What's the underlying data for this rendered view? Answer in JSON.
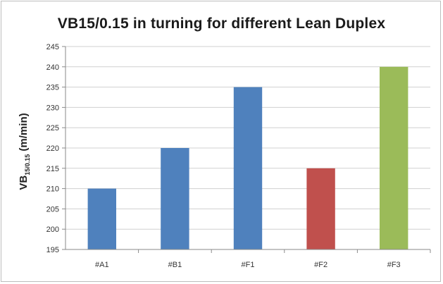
{
  "chart_data": {
    "type": "bar",
    "title": "VB15/0.15 in turning for different Lean Duplex",
    "ylabel": "VB15/0.15 (m/min)",
    "ylabel_parts": {
      "main": "VB",
      "sub": "15/0.15",
      "unit": " (m/min)"
    },
    "xlabel": "",
    "categories": [
      "#A1",
      "#B1",
      "#F1",
      "#F2",
      "#F3"
    ],
    "values": [
      210,
      220,
      235,
      215,
      240
    ],
    "colors": [
      "#4f81bd",
      "#4f81bd",
      "#4f81bd",
      "#c0504d",
      "#9bbb59"
    ],
    "ylim": [
      195,
      245
    ],
    "ytick_step": 5,
    "ytick_labels": [
      "195",
      "200",
      "205",
      "210",
      "215",
      "220",
      "225",
      "230",
      "235",
      "240",
      "245"
    ],
    "grid": true,
    "legend": "none"
  }
}
